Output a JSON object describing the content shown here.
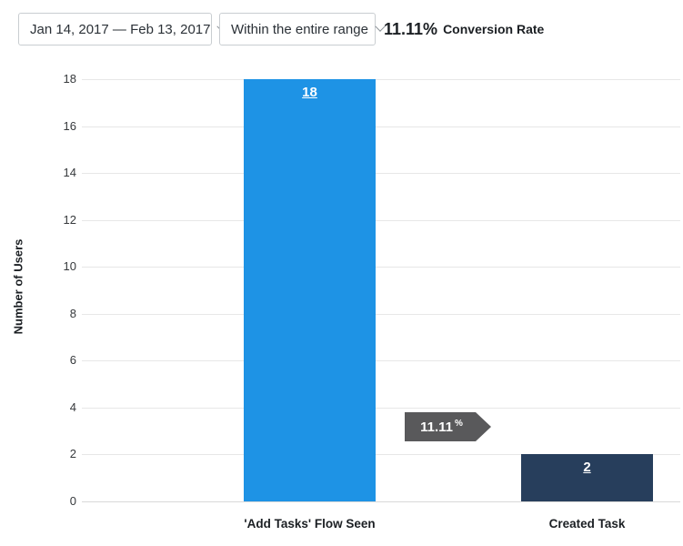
{
  "header": {
    "date_range_dropdown": {
      "value": "Jan 14, 2017 — Feb 13, 2017",
      "icon": "chevron-down"
    },
    "window_dropdown": {
      "value": "Within the entire range",
      "icon": "chevron-down"
    },
    "conversion_summary": {
      "rate": "11.11%",
      "label": "Conversion Rate"
    }
  },
  "chart_data": {
    "type": "bar",
    "title": "",
    "categories": [
      "'Add Tasks' Flow Seen",
      "Created Task"
    ],
    "values": [
      18,
      2
    ],
    "value_labels": [
      "18",
      "2"
    ],
    "bar_colors": [
      "#1e93e5",
      "#273e5c"
    ],
    "xlabel": "",
    "ylabel": "Number of Users",
    "ylim": [
      0,
      18
    ],
    "ytick_step": 2,
    "grid": true,
    "legend": false,
    "annotation": {
      "type": "conversion-arrow",
      "value": "11.11",
      "suffix": "%",
      "from": "'Add Tasks' Flow Seen",
      "to": "Created Task",
      "color": "#59595b"
    }
  }
}
